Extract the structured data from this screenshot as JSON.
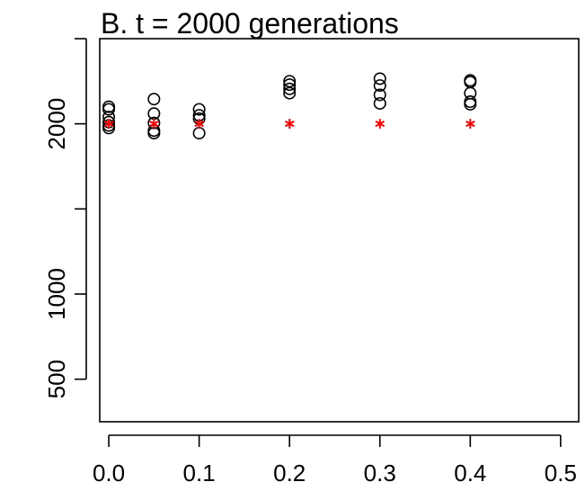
{
  "chart_data": {
    "type": "scatter",
    "title": "B. t = 2000 generations",
    "xlabel": "",
    "ylabel": "",
    "xlim": [
      -0.01,
      0.52
    ],
    "ylim": [
      250,
      2500
    ],
    "x_ticks": [
      0.0,
      0.1,
      0.2,
      0.3,
      0.4,
      0.5
    ],
    "x_tick_labels": [
      "0.0",
      "0.1",
      "0.2",
      "0.3",
      "0.4",
      "0.5"
    ],
    "y_ticks": [
      500,
      1000,
      1500,
      2000,
      2500
    ],
    "y_tick_labels": [
      "500",
      "1000",
      "",
      "2000",
      ""
    ],
    "grid": false,
    "series": [
      {
        "marker": "circle",
        "color": "#000000",
        "points": [
          {
            "x": 0.0,
            "y": 2100
          },
          {
            "x": 0.0,
            "y": 2085
          },
          {
            "x": 0.0,
            "y": 2040
          },
          {
            "x": 0.0,
            "y": 1990
          },
          {
            "x": 0.0,
            "y": 1975
          },
          {
            "x": 0.0,
            "y": 2010
          },
          {
            "x": 0.05,
            "y": 2145
          },
          {
            "x": 0.05,
            "y": 2060
          },
          {
            "x": 0.05,
            "y": 2005
          },
          {
            "x": 0.05,
            "y": 1960
          },
          {
            "x": 0.05,
            "y": 1945
          },
          {
            "x": 0.1,
            "y": 2085
          },
          {
            "x": 0.1,
            "y": 2050
          },
          {
            "x": 0.1,
            "y": 2030
          },
          {
            "x": 0.1,
            "y": 1945
          },
          {
            "x": 0.2,
            "y": 2250
          },
          {
            "x": 0.2,
            "y": 2230
          },
          {
            "x": 0.2,
            "y": 2205
          },
          {
            "x": 0.2,
            "y": 2180
          },
          {
            "x": 0.3,
            "y": 2265
          },
          {
            "x": 0.3,
            "y": 2225
          },
          {
            "x": 0.3,
            "y": 2170
          },
          {
            "x": 0.3,
            "y": 2120
          },
          {
            "x": 0.4,
            "y": 2255
          },
          {
            "x": 0.4,
            "y": 2245
          },
          {
            "x": 0.4,
            "y": 2180
          },
          {
            "x": 0.4,
            "y": 2130
          },
          {
            "x": 0.4,
            "y": 2115
          }
        ]
      },
      {
        "marker": "asterisk",
        "color": "#ff0000",
        "points": [
          {
            "x": 0.0,
            "y": 2000
          },
          {
            "x": 0.05,
            "y": 2000
          },
          {
            "x": 0.1,
            "y": 2000
          },
          {
            "x": 0.2,
            "y": 2000
          },
          {
            "x": 0.3,
            "y": 2000
          },
          {
            "x": 0.4,
            "y": 2000
          }
        ]
      }
    ]
  }
}
